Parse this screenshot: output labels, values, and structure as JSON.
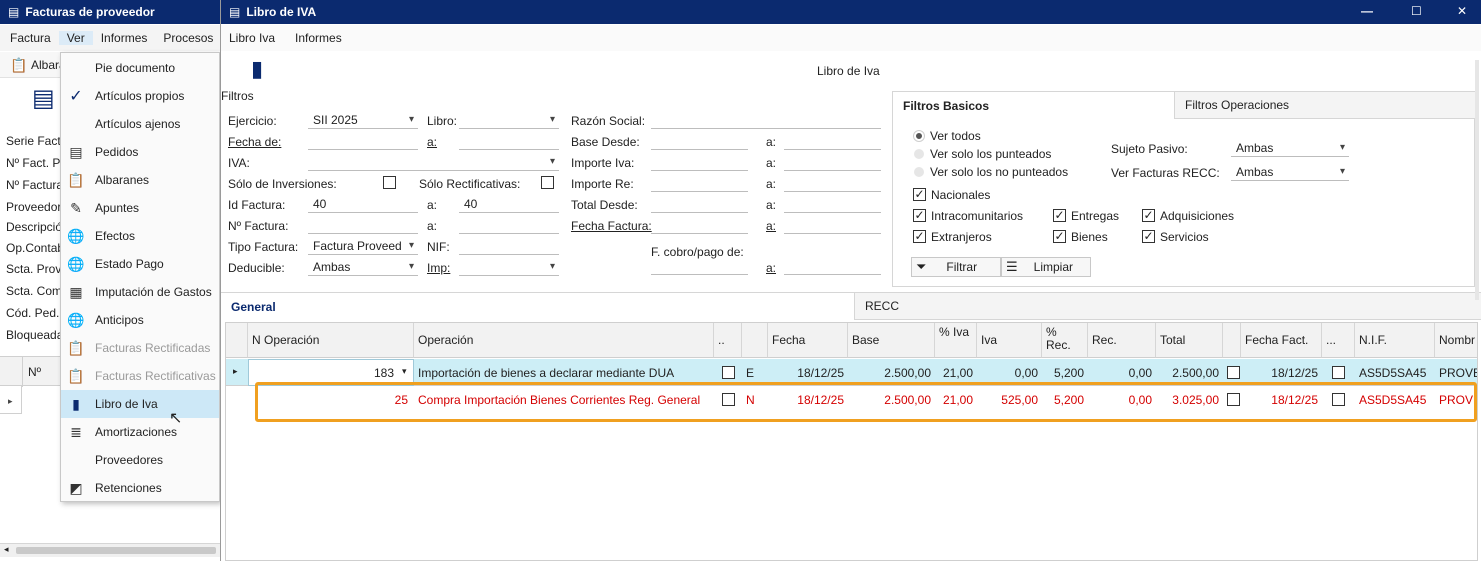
{
  "left_window": {
    "title": "Facturas de proveedor",
    "menu": [
      "Factura",
      "Ver",
      "Informes",
      "Procesos"
    ],
    "toolbar_label": "Albara",
    "field_labels": [
      "Serie Fact:",
      "Nº Fact. Pr",
      "Nº Factura",
      "Proveedor",
      "Descripció",
      "Op.Contab",
      "Scta. Prov",
      "Scta. Com",
      "Cód. Ped.:",
      "Bloqueada"
    ],
    "grid_header": "Nº"
  },
  "ver_menu": {
    "items": [
      {
        "label": "Pie documento",
        "icon": "",
        "disabled": false
      },
      {
        "label": "Artículos propios",
        "icon": "check-icon",
        "disabled": false
      },
      {
        "label": "Artículos ajenos",
        "icon": "",
        "disabled": false
      },
      {
        "label": "Pedidos",
        "icon": "document-icon",
        "disabled": false
      },
      {
        "label": "Albaranes",
        "icon": "clipboard-gear-icon",
        "disabled": false
      },
      {
        "label": "Apuntes",
        "icon": "edit-icon",
        "disabled": false
      },
      {
        "label": "Efectos",
        "icon": "globe-icon",
        "disabled": false
      },
      {
        "label": "Estado Pago",
        "icon": "globe-icon",
        "disabled": false
      },
      {
        "label": "Imputación de Gastos",
        "icon": "invoice-icon",
        "disabled": false
      },
      {
        "label": "Anticipos",
        "icon": "globe-icon",
        "disabled": false
      },
      {
        "label": "Facturas Rectificadas",
        "icon": "clipboard-icon",
        "disabled": true
      },
      {
        "label": "Facturas Rectificativas",
        "icon": "clipboard-icon",
        "disabled": true
      },
      {
        "label": "Libro de Iva",
        "icon": "book-icon",
        "disabled": false
      },
      {
        "label": "Amortizaciones",
        "icon": "coins-icon",
        "disabled": false
      },
      {
        "label": "Proveedores",
        "icon": "",
        "disabled": false
      },
      {
        "label": "Retenciones",
        "icon": "retention-icon",
        "disabled": false
      }
    ]
  },
  "iva_window": {
    "title": "Libro de IVA",
    "controls": {
      "minimize": "—",
      "maximize": "☐",
      "close": "✕"
    },
    "menu": [
      "Libro Iva",
      "Informes"
    ],
    "heading": "Libro de Iva",
    "filters_label": "Filtros",
    "filters": {
      "ejercicio_label": "Ejercicio:",
      "ejercicio_value": "SII 2025",
      "libro_label": "Libro:",
      "razon_label": "Razón Social:",
      "fecha_de_label": "Fecha de:",
      "a_label": "a:",
      "base_desde_label": "Base Desde:",
      "iva_label": "IVA:",
      "importe_iva_label": "Importe Iva:",
      "solo_inversiones_label": "Sólo de Inversiones:",
      "solo_rectificativas_label": "Sólo Rectificativas:",
      "importe_re_label": "Importe Re:",
      "id_factura_label": "Id Factura:",
      "id_factura_from": "40",
      "id_factura_to": "40",
      "total_desde_label": "Total Desde:",
      "n_factura_label": "Nº Factura:",
      "fecha_factura_label": "Fecha Factura:",
      "tipo_factura_label": "Tipo Factura:",
      "tipo_factura_value": "Factura Proveed",
      "nif_label": "NIF:",
      "cobro_pago_label": "F. cobro/pago de:",
      "deducible_label": "Deducible:",
      "deducible_value": "Ambas",
      "imp_label": "Imp:"
    },
    "filter_tabs": [
      "Filtros Basicos",
      "Filtros Operaciones"
    ],
    "basic": {
      "radio_all": "Ver todos",
      "radio_punteados": "Ver solo los punteados",
      "radio_no_punteados": "Ver solo los no punteados",
      "sujeto_label": "Sujeto Pasivo:",
      "sujeto_value": "Ambas",
      "recc_label": "Ver Facturas RECC:",
      "recc_value": "Ambas",
      "nacionales": "Nacionales",
      "intracomunitarios": "Intracomunitarios",
      "entregas": "Entregas",
      "adquisiciones": "Adquisiciones",
      "extranjeros": "Extranjeros",
      "bienes": "Bienes",
      "servicios": "Servicios",
      "filtrar": "Filtrar",
      "limpiar": "Limpiar"
    },
    "grid_tabs": [
      "General",
      "RECC"
    ],
    "columns": [
      "N Operación",
      "Operación",
      "..",
      "",
      "Fecha",
      "Base",
      "% Iva",
      "Iva",
      "% Rec.",
      "Rec.",
      "Total",
      "",
      "Fecha Fact.",
      "...",
      "N.I.F.",
      "Nombr"
    ],
    "rows": [
      {
        "nop": "183",
        "op": "Importación de bienes a declarar mediante DUA",
        "flag": "E",
        "fecha": "18/12/25",
        "base": "2.500,00",
        "piva": "21,00",
        "iva": "0,00",
        "prec": "5,200",
        "rec": "0,00",
        "total": "2.500,00",
        "ffact": "18/12/25",
        "nif": "AS5D5SA45",
        "nombre": "PROVE"
      },
      {
        "nop": "25",
        "op": "Compra Importación Bienes Corrientes Reg. General",
        "flag": "N",
        "fecha": "18/12/25",
        "base": "2.500,00",
        "piva": "21,00",
        "iva": "525,00",
        "prec": "5,200",
        "rec": "0,00",
        "total": "3.025,00",
        "ffact": "18/12/25",
        "nif": "AS5D5SA45",
        "nombre": "PROVE"
      }
    ]
  },
  "colors": {
    "title_bar": "#0b2a6f",
    "row_highlight": "#cdeef6",
    "red_text": "#d40000",
    "orange_outline": "#f0a020",
    "menu_hover": "#cde8f7"
  }
}
